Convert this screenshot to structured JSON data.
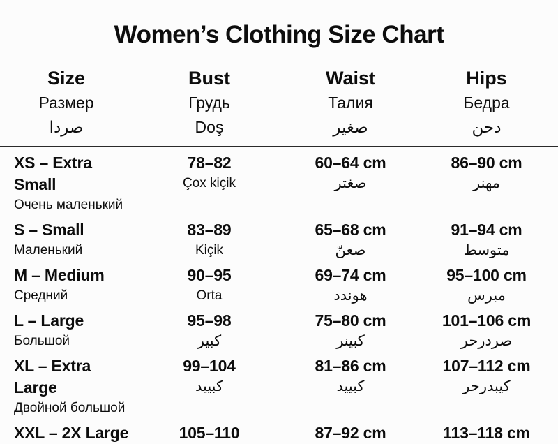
{
  "title": "Women’s Clothing Size Chart",
  "table": {
    "columns": [
      {
        "label_en": "Size",
        "label_ru": "Размер",
        "label_local": "صردا"
      },
      {
        "label_en": "Bust",
        "label_ru": "Грудь",
        "label_local": "Doş"
      },
      {
        "label_en": "Waist",
        "label_ru": "Талия",
        "label_local": "صغير"
      },
      {
        "label_en": "Hips",
        "label_ru": "Бедра",
        "label_local": "دحن"
      }
    ],
    "rows": [
      {
        "size": "XS – Extra Small",
        "size_sub": "Очень маленький",
        "bust": "78–82",
        "bust_sub": "Çox kiçik",
        "waist": "60–64 cm",
        "waist_sub": "صغتر",
        "hips": "86–90 cm",
        "hips_sub": "مهنر"
      },
      {
        "size": "S – Small",
        "size_sub": "Маленький",
        "bust": "83–89",
        "bust_sub": "Kiçik",
        "waist": "65–68 cm",
        "waist_sub": "صعنّ",
        "hips": "91–94 cm",
        "hips_sub": "متوسط"
      },
      {
        "size": "M – Medium",
        "size_sub": "Средний",
        "bust": "90–95",
        "bust_sub": "Orta",
        "waist": "69–74 cm",
        "waist_sub": "هوندد",
        "hips": "95–100 cm",
        "hips_sub": "مبرس"
      },
      {
        "size": "L – Large",
        "size_sub": "Большой",
        "bust": "95–98",
        "bust_sub": "كبير",
        "waist": "75–80 cm",
        "waist_sub": "كبينر",
        "hips": "101–106 cm",
        "hips_sub": "صردرحر"
      },
      {
        "size": "XL – Extra Large",
        "size_sub": "Двойной большой",
        "bust": "99–104",
        "bust_sub": "كبييد",
        "waist": "81–86 cm",
        "waist_sub": "كبييد",
        "hips": "107–112 cm",
        "hips_sub": "كيبدرحر"
      },
      {
        "size": "XXL – 2X Large",
        "size_sub": "",
        "bust": "105–110",
        "bust_sub": "",
        "waist": "87–92 cm",
        "waist_sub": "",
        "hips": "113–118 cm",
        "hips_sub": ""
      }
    ]
  }
}
